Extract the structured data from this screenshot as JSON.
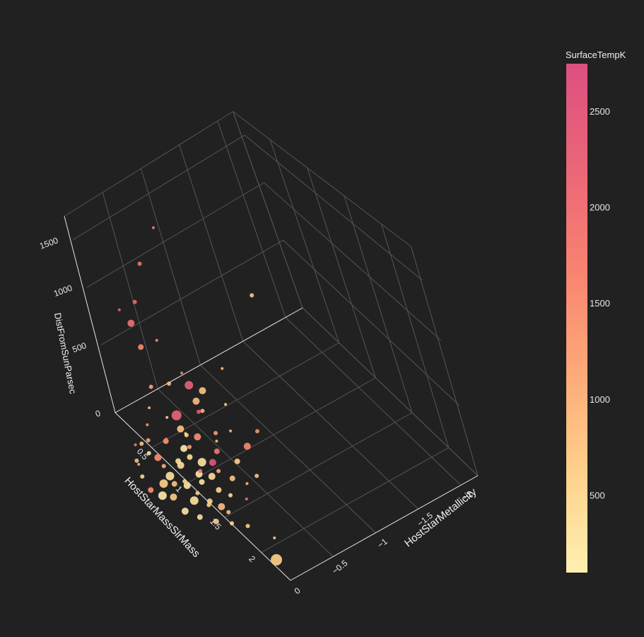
{
  "chart_data": {
    "type": "scatter",
    "title": "",
    "x": {
      "label": "HostStarMetallicity",
      "ticks": [
        -2,
        -1.5,
        -1,
        -0.5,
        0
      ]
    },
    "y": {
      "label": "HostStarMassSlrMass",
      "ticks": [
        0.5,
        1,
        1.5,
        2
      ]
    },
    "z": {
      "label": "DistFromSunParsec",
      "ticks": [
        0,
        500,
        1000,
        1500
      ]
    },
    "grid": true,
    "colorbar": {
      "title": "SurfaceTempK",
      "range": [
        100,
        2750
      ],
      "ticks": [
        500,
        1000,
        1500,
        2000,
        2500
      ],
      "colors": [
        "#fef0b0",
        "#fed08a",
        "#fda878",
        "#f88270",
        "#ea6578",
        "#dc5080"
      ]
    },
    "points_note": "",
    "points": [
      {
        "x": -0.05,
        "y": 2.15,
        "z": 5,
        "temp": 600,
        "size": 8
      },
      {
        "x": -0.2,
        "y": 1.95,
        "z": 10,
        "temp": 700,
        "size": 2
      },
      {
        "x": -1.1,
        "y": 0.2,
        "z": 40,
        "temp": 900,
        "size": 2
      },
      {
        "x": -1.6,
        "y": 0.2,
        "z": 400,
        "temp": 800,
        "size": 3
      },
      {
        "x": -0.7,
        "y": 0.35,
        "z": 1500,
        "temp": 1800,
        "size": 2
      },
      {
        "x": -0.4,
        "y": 0.4,
        "z": 1300,
        "temp": 2000,
        "size": 3
      },
      {
        "x": -0.2,
        "y": 0.45,
        "z": 1050,
        "temp": 2100,
        "size": 3
      },
      {
        "x": -0.1,
        "y": 0.45,
        "z": 900,
        "temp": 2000,
        "size": 5
      },
      {
        "x": -0.05,
        "y": 0.6,
        "z": 800,
        "temp": 1600,
        "size": 4
      },
      {
        "x": 0.05,
        "y": 0.55,
        "z": 1150,
        "temp": 2200,
        "size": 2
      },
      {
        "x": -0.3,
        "y": 0.5,
        "z": 700,
        "temp": 1500,
        "size": 2
      },
      {
        "x": 0,
        "y": 0.7,
        "z": 550,
        "temp": 1200,
        "size": 3
      },
      {
        "x": -0.2,
        "y": 0.7,
        "z": 500,
        "temp": 900,
        "size": 3
      },
      {
        "x": -0.3,
        "y": 0.8,
        "z": 600,
        "temp": 1700,
        "size": 2
      },
      {
        "x": 0.1,
        "y": 0.75,
        "z": 450,
        "temp": 1000,
        "size": 2
      },
      {
        "x": -0.5,
        "y": 0.55,
        "z": 300,
        "temp": 2300,
        "size": 6
      },
      {
        "x": -0.6,
        "y": 0.6,
        "z": 250,
        "temp": 800,
        "size": 5
      },
      {
        "x": -0.4,
        "y": 0.85,
        "z": 300,
        "temp": 1100,
        "size": 3
      },
      {
        "x": -0.45,
        "y": 0.7,
        "z": 200,
        "temp": 2500,
        "size": 3
      },
      {
        "x": -0.3,
        "y": 0.55,
        "z": 150,
        "temp": 2200,
        "size": 7
      },
      {
        "x": -0.25,
        "y": 0.65,
        "z": 120,
        "temp": 800,
        "size": 5
      },
      {
        "x": -0.6,
        "y": 0.45,
        "z": 100,
        "temp": 900,
        "size": 5
      },
      {
        "x": -0.35,
        "y": 0.75,
        "z": 80,
        "temp": 1500,
        "size": 5
      },
      {
        "x": -0.15,
        "y": 0.9,
        "z": 150,
        "temp": 1300,
        "size": 3
      },
      {
        "x": -0.1,
        "y": 0.6,
        "z": 60,
        "temp": 1400,
        "size": 4
      },
      {
        "x": 0.05,
        "y": 0.65,
        "z": 20,
        "temp": 1500,
        "size": 5
      },
      {
        "x": 0.1,
        "y": 0.8,
        "z": 50,
        "temp": 1000,
        "size": 3
      },
      {
        "x": 0.15,
        "y": 1.0,
        "z": 40,
        "temp": 800,
        "size": 4
      },
      {
        "x": 0.2,
        "y": 0.9,
        "z": 10,
        "temp": 600,
        "size": 6
      },
      {
        "x": 0.25,
        "y": 1.1,
        "z": 30,
        "temp": 700,
        "size": 5
      },
      {
        "x": 0.1,
        "y": 1.2,
        "z": 5,
        "temp": 300,
        "size": 6
      },
      {
        "x": 0.0,
        "y": 1.3,
        "z": 15,
        "temp": 600,
        "size": 4
      },
      {
        "x": -0.05,
        "y": 1.4,
        "z": 10,
        "temp": 900,
        "size": 5
      },
      {
        "x": -0.2,
        "y": 1.1,
        "z": 25,
        "temp": 400,
        "size": 5
      },
      {
        "x": -0.3,
        "y": 1.0,
        "z": 40,
        "temp": 2600,
        "size": 5
      },
      {
        "x": -0.35,
        "y": 1.2,
        "z": 10,
        "temp": 800,
        "size": 4
      },
      {
        "x": -0.4,
        "y": 0.95,
        "z": 60,
        "temp": 1900,
        "size": 4
      },
      {
        "x": -0.5,
        "y": 1.1,
        "z": 30,
        "temp": 600,
        "size": 4
      },
      {
        "x": -0.55,
        "y": 1.3,
        "z": 10,
        "temp": 800,
        "size": 3
      },
      {
        "x": -0.7,
        "y": 1.0,
        "z": 20,
        "temp": 1600,
        "size": 5
      },
      {
        "x": -0.9,
        "y": 0.9,
        "z": 10,
        "temp": 1500,
        "size": 3
      },
      {
        "x": 0.1,
        "y": 1.5,
        "z": 5,
        "temp": 700,
        "size": 4
      },
      {
        "x": 0.0,
        "y": 1.6,
        "z": 8,
        "temp": 500,
        "size": 3
      },
      {
        "x": -0.1,
        "y": 1.7,
        "z": 5,
        "temp": 700,
        "size": 3
      },
      {
        "x": 0.2,
        "y": 1.4,
        "z": 20,
        "temp": 400,
        "size": 4
      },
      {
        "x": 0.25,
        "y": 1.25,
        "z": 5,
        "temp": 300,
        "size": 5
      },
      {
        "x": 0.3,
        "y": 1.0,
        "z": 8,
        "temp": 200,
        "size": 6
      },
      {
        "x": 0.35,
        "y": 0.9,
        "z": 15,
        "temp": 1500,
        "size": 4
      },
      {
        "x": 0.15,
        "y": 0.95,
        "z": 70,
        "temp": 300,
        "size": 6
      },
      {
        "x": -0.15,
        "y": 0.8,
        "z": 90,
        "temp": 200,
        "size": 5
      },
      {
        "x": -0.05,
        "y": 0.85,
        "z": 30,
        "temp": 400,
        "size": 5
      },
      {
        "x": -0.25,
        "y": 0.9,
        "z": 10,
        "temp": 300,
        "size": 6
      },
      {
        "x": -0.1,
        "y": 1.05,
        "z": 50,
        "temp": 200,
        "size": 5
      },
      {
        "x": 0.05,
        "y": 1.05,
        "z": 20,
        "temp": 250,
        "size": 5
      },
      {
        "x": -0.05,
        "y": 1.15,
        "z": 60,
        "temp": 300,
        "size": 4
      },
      {
        "x": -0.15,
        "y": 1.25,
        "z": 20,
        "temp": 500,
        "size": 4
      },
      {
        "x": -0.2,
        "y": 1.35,
        "z": 15,
        "temp": 400,
        "size": 3
      },
      {
        "x": 0.1,
        "y": 1.1,
        "z": 90,
        "temp": 500,
        "size": 3
      },
      {
        "x": -0.1,
        "y": 0.95,
        "z": 120,
        "temp": 400,
        "size": 4
      },
      {
        "x": 0.0,
        "y": 0.9,
        "z": 100,
        "temp": 350,
        "size": 4
      },
      {
        "x": 0.2,
        "y": 0.75,
        "z": 150,
        "temp": 300,
        "size": 3
      },
      {
        "x": 0.15,
        "y": 0.7,
        "z": 200,
        "temp": 1200,
        "size": 3
      },
      {
        "x": 0.05,
        "y": 0.85,
        "z": 250,
        "temp": 1800,
        "size": 2
      },
      {
        "x": -0.1,
        "y": 0.7,
        "z": 280,
        "temp": 600,
        "size": 2
      },
      {
        "x": -0.2,
        "y": 0.8,
        "z": 180,
        "temp": 900,
        "size": 2
      },
      {
        "x": -0.15,
        "y": 1.0,
        "z": 30,
        "temp": 2000,
        "size": 3
      },
      {
        "x": 0.05,
        "y": 1.2,
        "z": 40,
        "temp": 700,
        "size": 3
      },
      {
        "x": -0.25,
        "y": 1.15,
        "z": 70,
        "temp": 1100,
        "size": 3
      },
      {
        "x": -0.3,
        "y": 0.65,
        "z": 60,
        "temp": 500,
        "size": 3
      },
      {
        "x": -0.45,
        "y": 0.9,
        "z": 90,
        "temp": 800,
        "size": 2
      },
      {
        "x": -0.55,
        "y": 0.75,
        "z": 40,
        "temp": 1300,
        "size": 3
      },
      {
        "x": -0.65,
        "y": 0.85,
        "z": 70,
        "temp": 1000,
        "size": 2
      },
      {
        "x": -0.75,
        "y": 0.7,
        "z": 150,
        "temp": 600,
        "size": 2
      },
      {
        "x": 0.25,
        "y": 0.6,
        "z": 40,
        "temp": 900,
        "size": 3
      },
      {
        "x": 0.3,
        "y": 0.7,
        "z": 80,
        "temp": 1100,
        "size": 2
      },
      {
        "x": 0.35,
        "y": 0.8,
        "z": 60,
        "temp": 500,
        "size": 3
      },
      {
        "x": 0.2,
        "y": 0.55,
        "z": 110,
        "temp": 1700,
        "size": 2
      },
      {
        "x": 0.1,
        "y": 0.5,
        "z": 60,
        "temp": 800,
        "size": 3
      },
      {
        "x": 0.0,
        "y": 0.5,
        "z": 160,
        "temp": 1400,
        "size": 2
      },
      {
        "x": 0.05,
        "y": 1.35,
        "z": 30,
        "temp": 600,
        "size": 3
      },
      {
        "x": -0.05,
        "y": 1.5,
        "z": 20,
        "temp": 800,
        "size": 3
      },
      {
        "x": 0.15,
        "y": 1.3,
        "z": 60,
        "temp": 700,
        "size": 2
      },
      {
        "x": -0.3,
        "y": 1.45,
        "z": 5,
        "temp": 1900,
        "size": 2
      },
      {
        "x": -0.4,
        "y": 1.35,
        "z": 30,
        "temp": 900,
        "size": 2
      }
    ]
  }
}
